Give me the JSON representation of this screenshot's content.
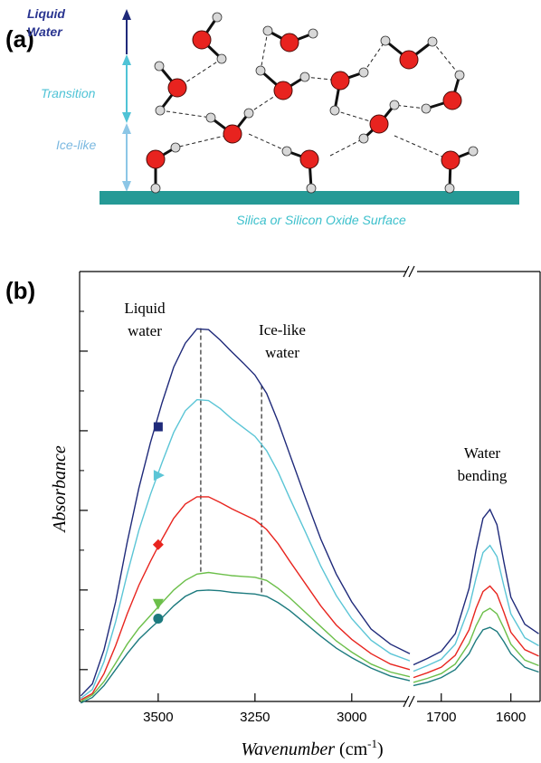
{
  "panel_a": {
    "label": "(a)",
    "liquid_water": [
      "Liquid",
      "Water"
    ],
    "transition": "Transition",
    "ice_like": "Ice-like",
    "surface": "Silica or Silicon Oxide Surface"
  },
  "chart_data": {
    "type": "line",
    "panel_label": "(b)",
    "y_label": "Absorbance",
    "x_label": "Wavenumber",
    "x_unit": [
      "(cm",
      "-1",
      ")"
    ],
    "xlim": [
      3703,
      2850
    ],
    "xticks": [
      3500,
      3250,
      3000
    ],
    "x2lim": [
      1740,
      1558
    ],
    "x2ticks": [
      1700,
      1600
    ],
    "ylim": [
      -0.4,
      5.0
    ],
    "yticks": [
      0,
      1,
      2,
      3,
      4
    ],
    "yticks_minor": [
      0.5,
      1.5,
      2.5,
      3.5,
      4.5
    ],
    "x": [
      3700,
      3670,
      3640,
      3610,
      3580,
      3550,
      3520,
      3490,
      3460,
      3430,
      3400,
      3370,
      3340,
      3310,
      3280,
      3250,
      3220,
      3190,
      3160,
      3120,
      3080,
      3040,
      3000,
      2950,
      2900,
      2850
    ],
    "x2": [
      1740,
      1720,
      1700,
      1680,
      1660,
      1650,
      1640,
      1630,
      1620,
      1610,
      1600,
      1580,
      1560
    ],
    "series": [
      {
        "color": "#1f2a7a",
        "marker": "square",
        "marker_x": 3500,
        "marker_y": 3.05,
        "values": [
          -0.33,
          -0.18,
          0.25,
          0.85,
          1.6,
          2.28,
          2.85,
          3.35,
          3.8,
          4.1,
          4.28,
          4.27,
          4.14,
          3.99,
          3.85,
          3.7,
          3.47,
          3.11,
          2.7,
          2.16,
          1.64,
          1.2,
          0.85,
          0.51,
          0.32,
          0.2
        ],
        "values2": [
          0.06,
          0.14,
          0.23,
          0.45,
          1.02,
          1.5,
          1.9,
          2.01,
          1.82,
          1.35,
          0.91,
          0.57,
          0.45
        ]
      },
      {
        "color": "#5bc5d6",
        "marker": "triangle-right",
        "marker_x": 3500,
        "marker_y": 2.44,
        "values": [
          -0.36,
          -0.25,
          0.1,
          0.6,
          1.2,
          1.75,
          2.2,
          2.6,
          2.98,
          3.25,
          3.39,
          3.38,
          3.28,
          3.15,
          3.04,
          2.93,
          2.75,
          2.48,
          2.15,
          1.73,
          1.3,
          0.93,
          0.64,
          0.37,
          0.2,
          0.11
        ],
        "values2": [
          -0.02,
          0.05,
          0.13,
          0.32,
          0.78,
          1.15,
          1.47,
          1.56,
          1.42,
          1.05,
          0.7,
          0.4,
          0.3
        ]
      },
      {
        "color": "#e8251f",
        "marker": "diamond",
        "marker_x": 3500,
        "marker_y": 1.57,
        "values": [
          -0.38,
          -0.3,
          -0.05,
          0.3,
          0.7,
          1.06,
          1.36,
          1.64,
          1.9,
          2.08,
          2.17,
          2.17,
          2.1,
          2.02,
          1.95,
          1.88,
          1.76,
          1.58,
          1.36,
          1.08,
          0.8,
          0.56,
          0.38,
          0.2,
          0.07,
          0.0
        ],
        "values2": [
          -0.1,
          -0.04,
          0.03,
          0.18,
          0.5,
          0.77,
          0.98,
          1.05,
          0.95,
          0.72,
          0.47,
          0.25,
          0.17
        ]
      },
      {
        "color": "#6cbf4a",
        "marker": "triangle-down",
        "marker_x": 3500,
        "marker_y": 0.83,
        "values": [
          -0.4,
          -0.32,
          -0.15,
          0.08,
          0.32,
          0.52,
          0.68,
          0.84,
          1.0,
          1.12,
          1.2,
          1.22,
          1.2,
          1.18,
          1.17,
          1.16,
          1.12,
          1.02,
          0.9,
          0.72,
          0.54,
          0.36,
          0.22,
          0.07,
          -0.03,
          -0.09
        ],
        "values2": [
          -0.16,
          -0.11,
          -0.05,
          0.07,
          0.33,
          0.55,
          0.72,
          0.77,
          0.7,
          0.52,
          0.32,
          0.12,
          0.05
        ]
      },
      {
        "color": "#1c7a7e",
        "marker": "circle",
        "marker_x": 3500,
        "marker_y": 0.64,
        "values": [
          -0.42,
          -0.35,
          -0.2,
          0.0,
          0.2,
          0.38,
          0.52,
          0.65,
          0.8,
          0.92,
          0.99,
          1.0,
          0.99,
          0.97,
          0.96,
          0.95,
          0.92,
          0.84,
          0.74,
          0.58,
          0.42,
          0.27,
          0.15,
          0.02,
          -0.08,
          -0.14
        ],
        "values2": [
          -0.2,
          -0.16,
          -0.1,
          0.0,
          0.2,
          0.37,
          0.5,
          0.53,
          0.48,
          0.35,
          0.2,
          0.03,
          -0.03
        ]
      }
    ],
    "reference_lines": [
      {
        "x": 3390,
        "y": [
          1.23,
          4.31
        ]
      },
      {
        "x": 3233,
        "y": [
          0.97,
          3.58
        ]
      }
    ],
    "annotations": [
      {
        "text": [
          "Liquid",
          "water"
        ]
      },
      {
        "text": [
          "Ice-like",
          "water"
        ]
      },
      {
        "text": [
          "Water",
          "bending"
        ]
      }
    ]
  }
}
